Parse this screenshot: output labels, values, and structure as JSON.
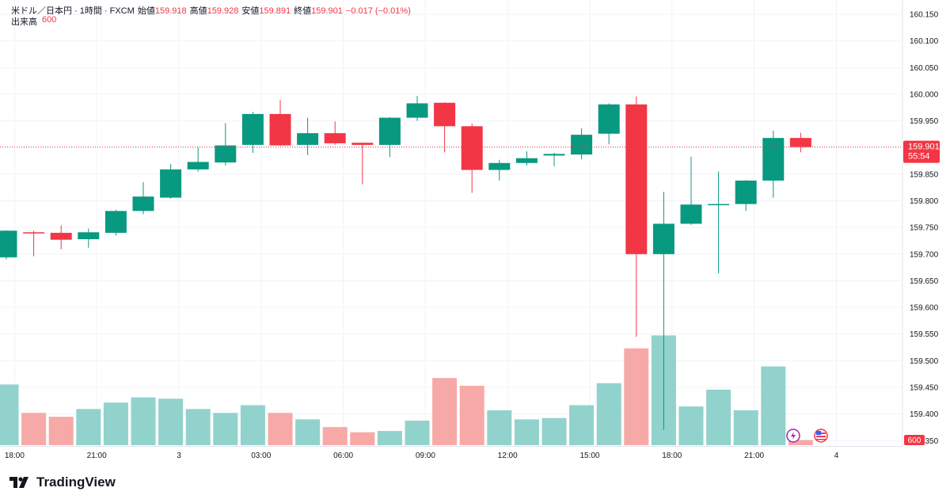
{
  "header": {
    "symbol": "米ドル／日本円 · 1時間 · FXCM",
    "open_label": "始値",
    "open": "159.918",
    "high_label": "高値",
    "high": "159.928",
    "low_label": "安値",
    "low": "159.891",
    "close_label": "終値",
    "close": "159.901",
    "change": "−0.017 (−0.01%)",
    "volume_label": "出来高",
    "volume": "600"
  },
  "price_label": {
    "value": "159.901",
    "countdown": "55:54"
  },
  "volume_tag": "600",
  "brand": "TradingView",
  "colors": {
    "up": "#089981",
    "down": "#f23645",
    "up_vol": "#92d2cc",
    "down_vol": "#f7a9a7",
    "axis_text": "#131722",
    "grid": "#f0f3fa"
  },
  "chart_data": {
    "type": "candlestick",
    "ylim": [
      159.34,
      160.165
    ],
    "y_ticks": [
      "159.350",
      "159.400",
      "159.450",
      "159.500",
      "159.550",
      "159.600",
      "159.650",
      "159.700",
      "159.750",
      "159.800",
      "159.850",
      "159.900",
      "159.950",
      "160.000",
      "160.050",
      "160.100",
      "160.150"
    ],
    "x_ticks": [
      {
        "label": "18:00",
        "index": 0.3
      },
      {
        "label": "21:00",
        "index": 3.3
      },
      {
        "label": "3",
        "index": 6.3
      },
      {
        "label": "03:00",
        "index": 9.3
      },
      {
        "label": "06:00",
        "index": 12.3
      },
      {
        "label": "09:00",
        "index": 15.3
      },
      {
        "label": "12:00",
        "index": 18.3
      },
      {
        "label": "15:00",
        "index": 21.3
      },
      {
        "label": "18:00",
        "index": 24.3
      },
      {
        "label": "21:00",
        "index": 27.3
      },
      {
        "label": "4",
        "index": 30.3
      }
    ],
    "candles": [
      {
        "o": 159.694,
        "h": 159.745,
        "l": 159.69,
        "c": 159.744,
        "v": 0.47
      },
      {
        "o": 159.741,
        "h": 159.744,
        "l": 159.696,
        "c": 159.74,
        "v": 0.25
      },
      {
        "o": 159.74,
        "h": 159.754,
        "l": 159.709,
        "c": 159.727,
        "v": 0.22
      },
      {
        "o": 159.728,
        "h": 159.748,
        "l": 159.712,
        "c": 159.741,
        "v": 0.28
      },
      {
        "o": 159.74,
        "h": 159.783,
        "l": 159.735,
        "c": 159.781,
        "v": 0.33
      },
      {
        "o": 159.781,
        "h": 159.835,
        "l": 159.775,
        "c": 159.808,
        "v": 0.37
      },
      {
        "o": 159.806,
        "h": 159.869,
        "l": 159.804,
        "c": 159.859,
        "v": 0.36
      },
      {
        "o": 159.859,
        "h": 159.9,
        "l": 159.855,
        "c": 159.873,
        "v": 0.28
      },
      {
        "o": 159.872,
        "h": 159.946,
        "l": 159.866,
        "c": 159.904,
        "v": 0.25
      },
      {
        "o": 159.905,
        "h": 159.967,
        "l": 159.89,
        "c": 159.963,
        "v": 0.31
      },
      {
        "o": 159.963,
        "h": 159.989,
        "l": 159.903,
        "c": 159.904,
        "v": 0.25
      },
      {
        "o": 159.905,
        "h": 159.956,
        "l": 159.886,
        "c": 159.927,
        "v": 0.2
      },
      {
        "o": 159.927,
        "h": 159.949,
        "l": 159.905,
        "c": 159.908,
        "v": 0.14
      },
      {
        "o": 159.909,
        "h": 159.909,
        "l": 159.831,
        "c": 159.905,
        "v": 0.1
      },
      {
        "o": 159.905,
        "h": 159.957,
        "l": 159.882,
        "c": 159.956,
        "v": 0.11
      },
      {
        "o": 159.956,
        "h": 159.997,
        "l": 159.95,
        "c": 159.983,
        "v": 0.19
      },
      {
        "o": 159.984,
        "h": 159.985,
        "l": 159.891,
        "c": 159.94,
        "v": 0.52
      },
      {
        "o": 159.94,
        "h": 159.945,
        "l": 159.815,
        "c": 159.858,
        "v": 0.46
      },
      {
        "o": 159.858,
        "h": 159.877,
        "l": 159.838,
        "c": 159.871,
        "v": 0.27
      },
      {
        "o": 159.871,
        "h": 159.893,
        "l": 159.866,
        "c": 159.88,
        "v": 0.2
      },
      {
        "o": 159.885,
        "h": 159.89,
        "l": 159.865,
        "c": 159.888,
        "v": 0.21
      },
      {
        "o": 159.887,
        "h": 159.936,
        "l": 159.878,
        "c": 159.924,
        "v": 0.31
      },
      {
        "o": 159.926,
        "h": 159.983,
        "l": 159.906,
        "c": 159.981,
        "v": 0.48
      },
      {
        "o": 159.981,
        "h": 159.996,
        "l": 159.545,
        "c": 159.7,
        "v": 0.75
      },
      {
        "o": 159.7,
        "h": 159.817,
        "l": 159.37,
        "c": 159.757,
        "v": 0.85
      },
      {
        "o": 159.757,
        "h": 159.883,
        "l": 159.755,
        "c": 159.793,
        "v": 0.3
      },
      {
        "o": 159.793,
        "h": 159.855,
        "l": 159.664,
        "c": 159.794,
        "v": 0.43
      },
      {
        "o": 159.794,
        "h": 159.839,
        "l": 159.781,
        "c": 159.838,
        "v": 0.27
      },
      {
        "o": 159.838,
        "h": 159.932,
        "l": 159.806,
        "c": 159.918,
        "v": 0.61
      },
      {
        "o": 159.918,
        "h": 159.928,
        "l": 159.891,
        "c": 159.901,
        "v": 0.04
      }
    ]
  }
}
